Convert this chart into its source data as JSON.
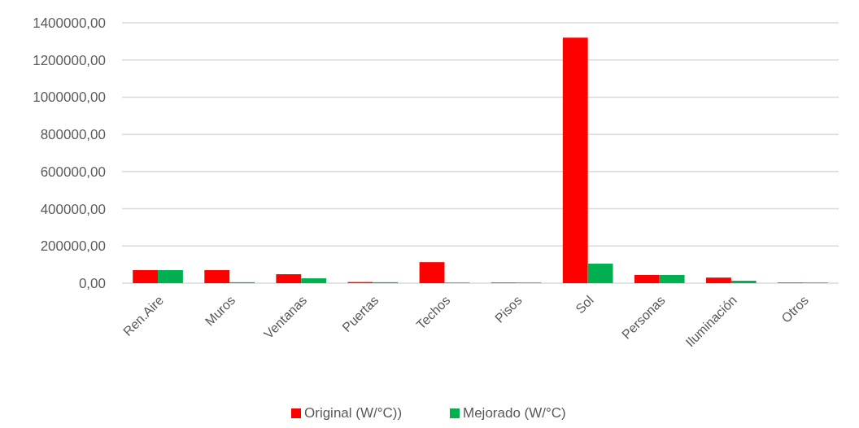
{
  "chart_data": {
    "type": "bar",
    "categories": [
      "Ren.Aire",
      "Muros",
      "Ventanas",
      "Puertas",
      "Techos",
      "Pisos",
      "Sol",
      "Personas",
      "Iluminación",
      "Otros"
    ],
    "series": [
      {
        "name": "Original (W/°C))",
        "color": "#ff0000",
        "values": [
          70000,
          70000,
          48000,
          6000,
          113000,
          3000,
          1320000,
          44000,
          30000,
          3000
        ]
      },
      {
        "name": "Mejorado (W/°C)",
        "color": "#00b050",
        "values": [
          70000,
          5000,
          26000,
          5000,
          3000,
          3000,
          105000,
          44000,
          13000,
          3000
        ]
      }
    ],
    "ylim": [
      0,
      1400000
    ],
    "yticks": [
      {
        "value": 0,
        "label": "0,00"
      },
      {
        "value": 200000,
        "label": "200000,00"
      },
      {
        "value": 400000,
        "label": "400000,00"
      },
      {
        "value": 600000,
        "label": "600000,00"
      },
      {
        "value": 800000,
        "label": "800000,00"
      },
      {
        "value": 1000000,
        "label": "1000000,00"
      },
      {
        "value": 1200000,
        "label": "1200000,00"
      },
      {
        "value": 1400000,
        "label": "1400000,00"
      }
    ],
    "grid": "y",
    "legend": "bottom"
  }
}
